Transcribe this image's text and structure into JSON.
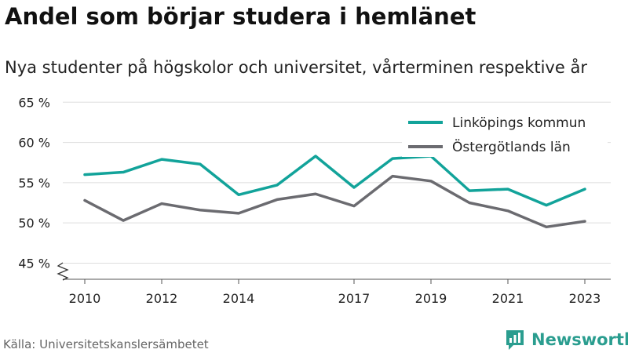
{
  "page": {
    "title": "Andel som börjar studera i hemlänet",
    "subtitle": "Nya studenter på högskolor och universitet, vårterminen respektive år",
    "source": "Källa: Universitetskanslersämbetet",
    "brand": "Newsworthy"
  },
  "colors": {
    "series1": "#12a39a",
    "series2": "#6b6b70",
    "grid": "#dddddd",
    "axis": "#555555",
    "brand": "#2a9d8f"
  },
  "chart_data": {
    "type": "line",
    "x": [
      2010,
      2011,
      2012,
      2013,
      2014,
      2015,
      2016,
      2017,
      2018,
      2019,
      2020,
      2021,
      2022,
      2023
    ],
    "x_tick_labels": [
      "2010",
      "2012",
      "2014",
      "2017",
      "2019",
      "2021",
      "2023"
    ],
    "y_tick_labels": [
      "45 %",
      "50 %",
      "55 %",
      "60 %",
      "65 %"
    ],
    "y_ticks": [
      45,
      50,
      55,
      60,
      65
    ],
    "ylim": [
      43,
      66
    ],
    "xlim": [
      2010,
      2023
    ],
    "axis_break": true,
    "grid": "horizontal",
    "legend_position": "top-right",
    "series": [
      {
        "name": "Linköpings kommun",
        "color": "#12a39a",
        "values": [
          56.0,
          56.3,
          57.9,
          57.3,
          53.5,
          54.7,
          58.3,
          54.4,
          58.0,
          58.3,
          54.0,
          54.2,
          52.2,
          54.2
        ]
      },
      {
        "name": "Östergötlands län",
        "color": "#6b6b70",
        "values": [
          52.8,
          50.3,
          52.4,
          51.6,
          51.2,
          52.9,
          53.6,
          52.1,
          55.8,
          55.2,
          52.5,
          51.5,
          49.5,
          50.2
        ]
      }
    ]
  }
}
